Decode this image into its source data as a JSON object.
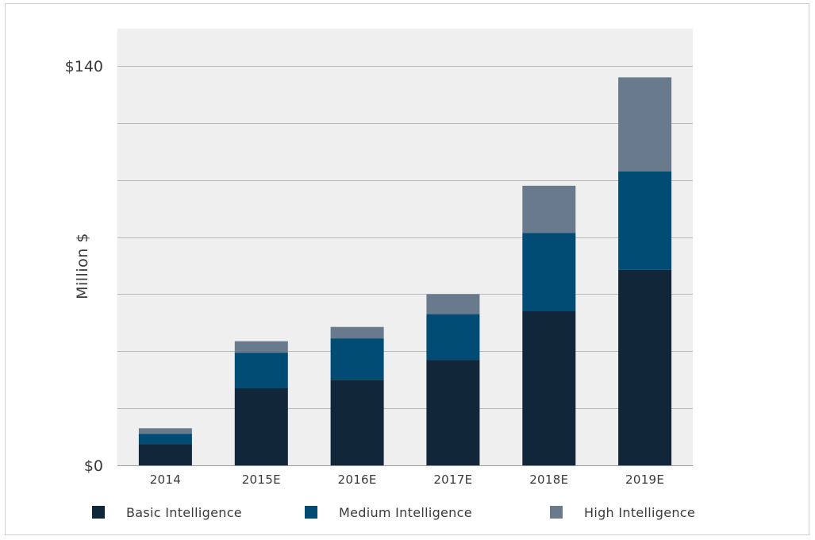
{
  "chart_data": {
    "type": "bar",
    "stacked": true,
    "categories": [
      "2014",
      "2015E",
      "2016E",
      "2017E",
      "2018E",
      "2019E"
    ],
    "series": [
      {
        "name": "Basic Intelligence",
        "color": "#12263a",
        "values": [
          7.5,
          27,
          30,
          37,
          54,
          68.5
        ]
      },
      {
        "name": "Medium Intelligence",
        "color": "#004c74",
        "values": [
          3.5,
          12.5,
          14.5,
          16,
          27.5,
          34.5
        ]
      },
      {
        "name": "High Intelligence",
        "color": "#687a8c",
        "values": [
          2,
          4,
          4,
          7,
          16.5,
          33
        ]
      }
    ],
    "ylabel": "Million $",
    "yticks": [
      "$0",
      "$140"
    ],
    "ylim": [
      0,
      140
    ],
    "grid": true,
    "legend_position": "bottom"
  }
}
